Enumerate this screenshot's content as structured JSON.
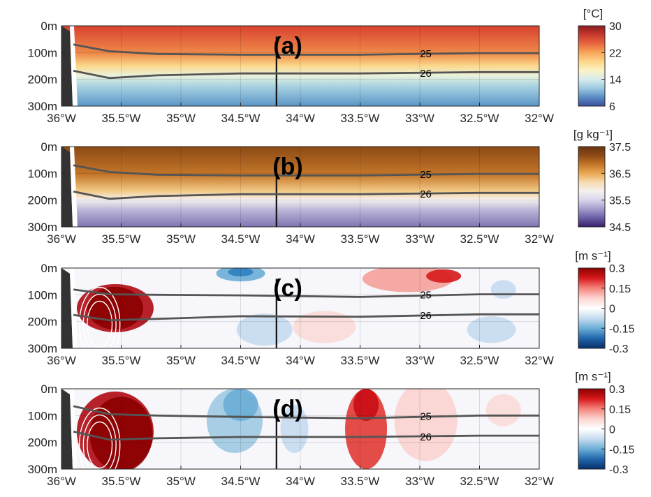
{
  "chart_data": [
    {
      "panel_label": "(a)",
      "type": "section-contour",
      "field": "temperature",
      "colorbar": {
        "unit": "[°C]",
        "ticks": [
          "30",
          "22",
          "14",
          "6"
        ],
        "range": [
          6,
          30
        ],
        "colors": [
          "#3a4f9c",
          "#5b8cc4",
          "#9cc8df",
          "#d6ecef",
          "#fbf3c4",
          "#fdd58a",
          "#f8a65a",
          "#e8663e",
          "#c73a2e",
          "#8c1a1e"
        ]
      },
      "isopycnals": [
        {
          "label": "25",
          "x": [
            -35.9,
            -35.6,
            -35.2,
            -34.5,
            -33.5,
            -32.5,
            -32
          ],
          "y": [
            70,
            95,
            105,
            108,
            108,
            102,
            102
          ]
        },
        {
          "label": "26",
          "x": [
            -35.9,
            -35.6,
            -35.2,
            -34.5,
            -33.5,
            -32.5,
            -32
          ],
          "y": [
            168,
            195,
            185,
            178,
            178,
            173,
            173
          ]
        }
      ],
      "section_line_x": -34.2
    },
    {
      "panel_label": "(b)",
      "type": "section-contour",
      "field": "salinity",
      "colorbar": {
        "unit": "[g kg⁻¹]",
        "ticks": [
          "37.5",
          "36.5",
          "35.5",
          "34.5"
        ],
        "range": [
          34.5,
          37.5
        ],
        "colors": [
          "#3b1f6b",
          "#6a5da6",
          "#a39ccb",
          "#d8d6ea",
          "#f5f0ee",
          "#f7dcb0",
          "#e9a853",
          "#c5772a",
          "#8c4a15",
          "#6b3410"
        ]
      },
      "isopycnals": [
        {
          "label": "25",
          "x": [
            -35.9,
            -35.6,
            -35.2,
            -34.5,
            -33.5,
            -32.5,
            -32
          ],
          "y": [
            70,
            95,
            105,
            108,
            108,
            102,
            102
          ]
        },
        {
          "label": "26",
          "x": [
            -35.9,
            -35.6,
            -35.2,
            -34.5,
            -33.5,
            -32.5,
            -32
          ],
          "y": [
            168,
            195,
            185,
            178,
            178,
            173,
            173
          ]
        }
      ],
      "section_line_x": -34.2
    },
    {
      "panel_label": "(c)",
      "type": "section-contour",
      "field": "velocity",
      "colorbar": {
        "unit": "[m s⁻¹]",
        "ticks": [
          "0.3",
          "0.15",
          "0",
          "-0.15",
          "-0.3"
        ],
        "range": [
          -0.3,
          0.3
        ],
        "colors": [
          "#08306b",
          "#2166ac",
          "#6baed6",
          "#c6dbef",
          "#ffffff",
          "#fcd5d0",
          "#f4837c",
          "#d7191c",
          "#8b0000"
        ]
      },
      "isopycnals": [
        {
          "label": "25",
          "x": [
            -35.9,
            -35.6,
            -35.2,
            -34.5,
            -33.5,
            -32.5,
            -32
          ],
          "y": [
            80,
            98,
            100,
            102,
            108,
            98,
            98
          ]
        },
        {
          "label": "26",
          "x": [
            -35.9,
            -35.6,
            -35.2,
            -34.5,
            -33.5,
            -32.5,
            -32
          ],
          "y": [
            175,
            195,
            190,
            180,
            182,
            173,
            173
          ]
        }
      ],
      "section_line_x": -34.2
    },
    {
      "panel_label": "(d)",
      "type": "section-contour",
      "field": "velocity",
      "colorbar": {
        "unit": "[m s⁻¹]",
        "ticks": [
          "0.3",
          "0.15",
          "0",
          "-0.15",
          "-0.3"
        ],
        "range": [
          -0.3,
          0.3
        ],
        "colors": [
          "#08306b",
          "#2166ac",
          "#6baed6",
          "#c6dbef",
          "#ffffff",
          "#fcd5d0",
          "#f4837c",
          "#d7191c",
          "#8b0000"
        ]
      },
      "isopycnals": [
        {
          "label": "25",
          "x": [
            -35.9,
            -35.6,
            -35.2,
            -34.5,
            -33.5,
            -32.5,
            -32
          ],
          "y": [
            65,
            95,
            100,
            105,
            110,
            100,
            100
          ]
        },
        {
          "label": "26",
          "x": [
            -35.9,
            -35.6,
            -35.2,
            -34.5,
            -33.5,
            -32.5,
            -32
          ],
          "y": [
            160,
            190,
            185,
            180,
            180,
            175,
            175
          ]
        }
      ],
      "section_line_x": -34.2
    }
  ],
  "axes": {
    "x_ticks": [
      -36,
      -35.5,
      -35,
      -34.5,
      -34,
      -33.5,
      -33,
      -32.5,
      -32
    ],
    "x_tick_labels": [
      "36°W",
      "35.5°W",
      "35°W",
      "34.5°W",
      "34°W",
      "33.5°W",
      "33°W",
      "32.5°W",
      "32°W"
    ],
    "xlim": [
      -36,
      -32
    ],
    "y_ticks": [
      0,
      100,
      200,
      300
    ],
    "y_tick_labels": [
      "0m",
      "100m",
      "200m",
      "300m"
    ],
    "ylim": [
      0,
      300
    ],
    "grid": true
  }
}
